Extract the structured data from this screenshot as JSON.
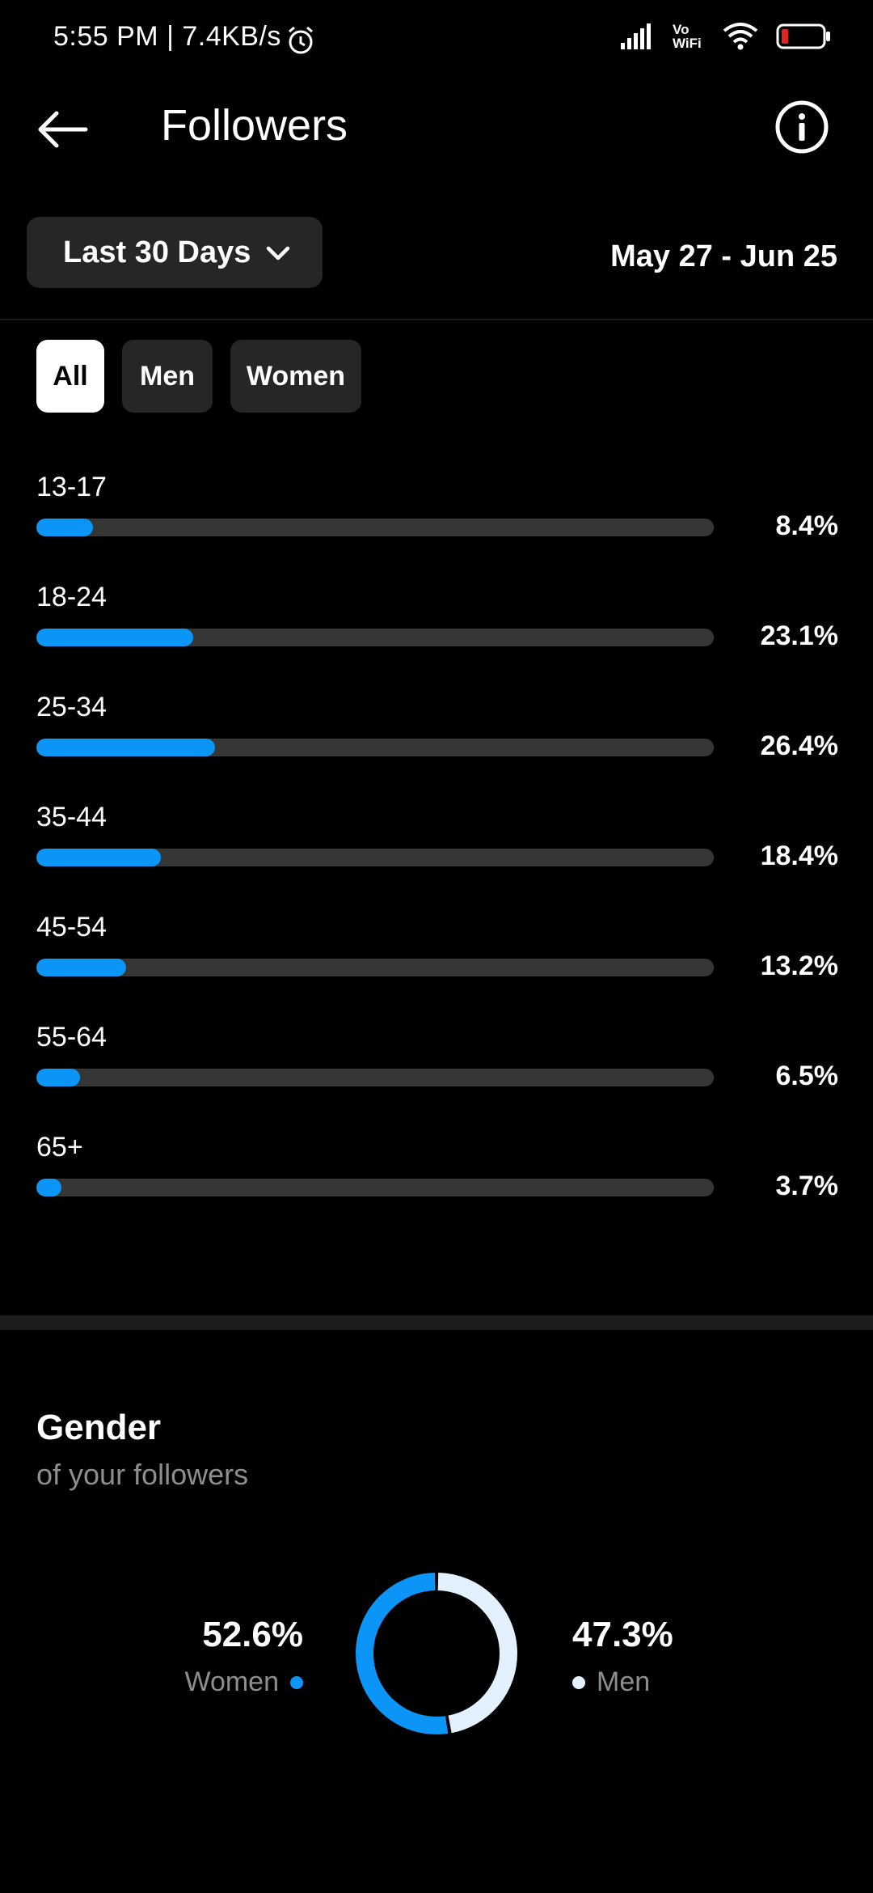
{
  "status_bar": {
    "time_speed": "5:55 PM | 7.4KB/s",
    "vowifi": "Vo WiFi"
  },
  "header": {
    "title": "Followers"
  },
  "range": {
    "label": "Last 30 Days",
    "dates": "May 27 - Jun 25"
  },
  "filters": {
    "all": "All",
    "men": "Men",
    "women": "Women",
    "active": "All"
  },
  "ages": [
    {
      "label": "13-17",
      "percent": "8.4%",
      "value": 8.4
    },
    {
      "label": "18-24",
      "percent": "23.1%",
      "value": 23.1
    },
    {
      "label": "25-34",
      "percent": "26.4%",
      "value": 26.4
    },
    {
      "label": "35-44",
      "percent": "18.4%",
      "value": 18.4
    },
    {
      "label": "45-54",
      "percent": "13.2%",
      "value": 13.2
    },
    {
      "label": "55-64",
      "percent": "6.5%",
      "value": 6.5
    },
    {
      "label": "65+",
      "percent": "3.7%",
      "value": 3.7
    }
  ],
  "gender": {
    "title": "Gender",
    "subtitle": "of your followers",
    "women": {
      "percent": "52.6%",
      "label": "Women",
      "value": 52.6,
      "color": "#0a95f7"
    },
    "men": {
      "percent": "47.3%",
      "label": "Men",
      "value": 47.3,
      "color": "#e3f1ff"
    }
  },
  "colors": {
    "accent": "#0a95f7",
    "track": "#363636",
    "chip_bg": "#262626"
  }
}
